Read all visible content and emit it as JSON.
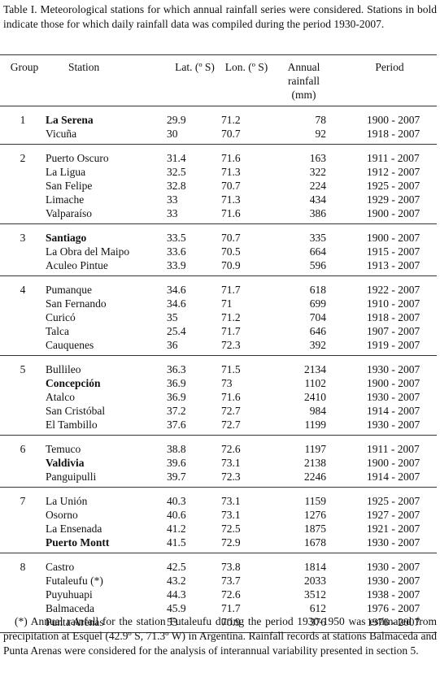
{
  "caption": "Table I. Meteorological stations for which annual rainfall series were considered. Stations in bold indicate those for which daily rainfall data was compiled during the period 1930-2007.",
  "columns": [
    "Group",
    "Station",
    "Lat. (º S)",
    "Lon. (º S)",
    "Annual rainfall (mm)",
    "Period"
  ],
  "groups": [
    {
      "group": "1",
      "rows": [
        {
          "station": "La Serena",
          "lat": "29.9",
          "lon": "71.2",
          "rainfall": "78",
          "period": "1900 - 2007",
          "bold": true
        },
        {
          "station": "Vicuña",
          "lat": "30",
          "lon": "70.7",
          "rainfall": "92",
          "period": "1918 - 2007",
          "bold": false
        }
      ]
    },
    {
      "group": "2",
      "rows": [
        {
          "station": "Puerto Oscuro",
          "lat": "31.4",
          "lon": "71.6",
          "rainfall": "163",
          "period": "1911 - 2007",
          "bold": false
        },
        {
          "station": "La Ligua",
          "lat": "32.5",
          "lon": "71.3",
          "rainfall": "322",
          "period": "1912 - 2007",
          "bold": false
        },
        {
          "station": "San Felipe",
          "lat": "32.8",
          "lon": "70.7",
          "rainfall": "224",
          "period": "1925 - 2007",
          "bold": false
        },
        {
          "station": "Limache",
          "lat": "33",
          "lon": "71.3",
          "rainfall": "434",
          "period": "1929 - 2007",
          "bold": false
        },
        {
          "station": "Valparaíso",
          "lat": "33",
          "lon": "71.6",
          "rainfall": "386",
          "period": "1900 - 2007",
          "bold": false
        }
      ]
    },
    {
      "group": "3",
      "rows": [
        {
          "station": "Santiago",
          "lat": "33.5",
          "lon": "70.7",
          "rainfall": "335",
          "period": "1900 - 2007",
          "bold": true
        },
        {
          "station": "La Obra del Maipo",
          "lat": "33.6",
          "lon": "70.5",
          "rainfall": "664",
          "period": "1915 - 2007",
          "bold": false
        },
        {
          "station": "Aculeo Pintue",
          "lat": "33.9",
          "lon": "70.9",
          "rainfall": "596",
          "period": "1913 - 2007",
          "bold": false
        }
      ]
    },
    {
      "group": "4",
      "rows": [
        {
          "station": "Pumanque",
          "lat": "34.6",
          "lon": "71.7",
          "rainfall": "618",
          "period": "1922 - 2007",
          "bold": false
        },
        {
          "station": "San Fernando",
          "lat": "34.6",
          "lon": "71",
          "rainfall": "699",
          "period": "1910 - 2007",
          "bold": false
        },
        {
          "station": "Curicó",
          "lat": "35",
          "lon": "71.2",
          "rainfall": "704",
          "period": "1918 - 2007",
          "bold": false
        },
        {
          "station": "Talca",
          "lat": "25.4",
          "lon": "71.7",
          "rainfall": "646",
          "period": "1907 - 2007",
          "bold": false
        },
        {
          "station": "Cauquenes",
          "lat": "36",
          "lon": "72.3",
          "rainfall": "392",
          "period": "1919 - 2007",
          "bold": false
        }
      ]
    },
    {
      "group": "5",
      "rows": [
        {
          "station": "Bullileo",
          "lat": "36.3",
          "lon": "71.5",
          "rainfall": "2134",
          "period": "1930 - 2007",
          "bold": false
        },
        {
          "station": "Concepción",
          "lat": "36.9",
          "lon": "73",
          "rainfall": "1102",
          "period": "1900 - 2007",
          "bold": true
        },
        {
          "station": "Atalco",
          "lat": "36.9",
          "lon": "71.6",
          "rainfall": "2410",
          "period": "1930 - 2007",
          "bold": false
        },
        {
          "station": "San Cristóbal",
          "lat": "37.2",
          "lon": "72.7",
          "rainfall": "984",
          "period": "1914 - 2007",
          "bold": false
        },
        {
          "station": "El Tambillo",
          "lat": "37.6",
          "lon": "72.7",
          "rainfall": "1199",
          "period": "1930 - 2007",
          "bold": false
        }
      ]
    },
    {
      "group": "6",
      "rows": [
        {
          "station": "Temuco",
          "lat": "38.8",
          "lon": "72.6",
          "rainfall": "1197",
          "period": "1911 - 2007",
          "bold": false
        },
        {
          "station": "Valdivia",
          "lat": "39.6",
          "lon": "73.1",
          "rainfall": "2138",
          "period": "1900 - 2007",
          "bold": true
        },
        {
          "station": "Panguipulli",
          "lat": "39.7",
          "lon": "72.3",
          "rainfall": "2246",
          "period": "1914 - 2007",
          "bold": false
        }
      ]
    },
    {
      "group": "7",
      "rows": [
        {
          "station": "La Unión",
          "lat": "40.3",
          "lon": "73.1",
          "rainfall": "1159",
          "period": "1925 - 2007",
          "bold": false
        },
        {
          "station": "Osorno",
          "lat": "40.6",
          "lon": "73.1",
          "rainfall": "1276",
          "period": "1927 - 2007",
          "bold": false
        },
        {
          "station": "La Ensenada",
          "lat": "41.2",
          "lon": "72.5",
          "rainfall": "1875",
          "period": "1921 - 2007",
          "bold": false
        },
        {
          "station": "Puerto Montt",
          "lat": "41.5",
          "lon": "72.9",
          "rainfall": "1678",
          "period": "1930 - 2007",
          "bold": true
        }
      ]
    },
    {
      "group": "8",
      "rows": [
        {
          "station": "Castro",
          "lat": "42.5",
          "lon": "73.8",
          "rainfall": "1814",
          "period": "1930 - 2007",
          "bold": false
        },
        {
          "station": "Futaleufu (*)",
          "lat": "43.2",
          "lon": "73.7",
          "rainfall": "2033",
          "period": "1930 - 2007",
          "bold": false
        },
        {
          "station": "Puyuhuapi",
          "lat": "44.3",
          "lon": "72.6",
          "rainfall": "3512",
          "period": "1938 - 2007",
          "bold": false
        },
        {
          "station": "Balmaceda",
          "lat": "45.9",
          "lon": "71.7",
          "rainfall": "612",
          "period": "1976 - 2007",
          "bold": false
        },
        {
          "station": "Punta Arenas",
          "lat": "53",
          "lon": "70.9",
          "rainfall": "376",
          "period": "1976 - 2007",
          "bold": false
        }
      ]
    }
  ],
  "footnote": "(*) Annual rainfall for the station Futaleufu during the period 1930-1950 was estimated from precipitation at Esquel (42.9º S, 71.3º W) in Argentina. Rainfall records at stations Balmaceda and Punta Arenas were considered for the analysis of interannual variability presented in section 5."
}
